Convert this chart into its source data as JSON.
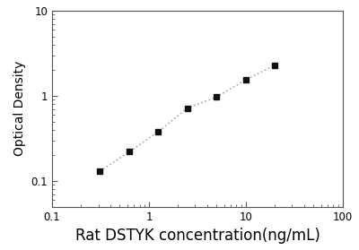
{
  "x": [
    0.3125,
    0.625,
    1.25,
    2.5,
    5.0,
    10.0,
    20.0
  ],
  "y": [
    0.13,
    0.22,
    0.38,
    0.72,
    0.97,
    1.55,
    2.3
  ],
  "xlabel": "Rat DSTYK concentration(ng/mL)",
  "ylabel": "Optical Density",
  "xlim": [
    0.1,
    100
  ],
  "ylim": [
    0.05,
    10
  ],
  "marker": "s",
  "marker_color": "#111111",
  "marker_size": 5,
  "line_color": "#aaaaaa",
  "line_style": ":",
  "line_width": 1.2,
  "bg_color": "#ffffff",
  "xlabel_fontsize": 12,
  "ylabel_fontsize": 10,
  "tick_fontsize": 8.5,
  "figsize": [
    4.0,
    2.79
  ],
  "dpi": 100
}
